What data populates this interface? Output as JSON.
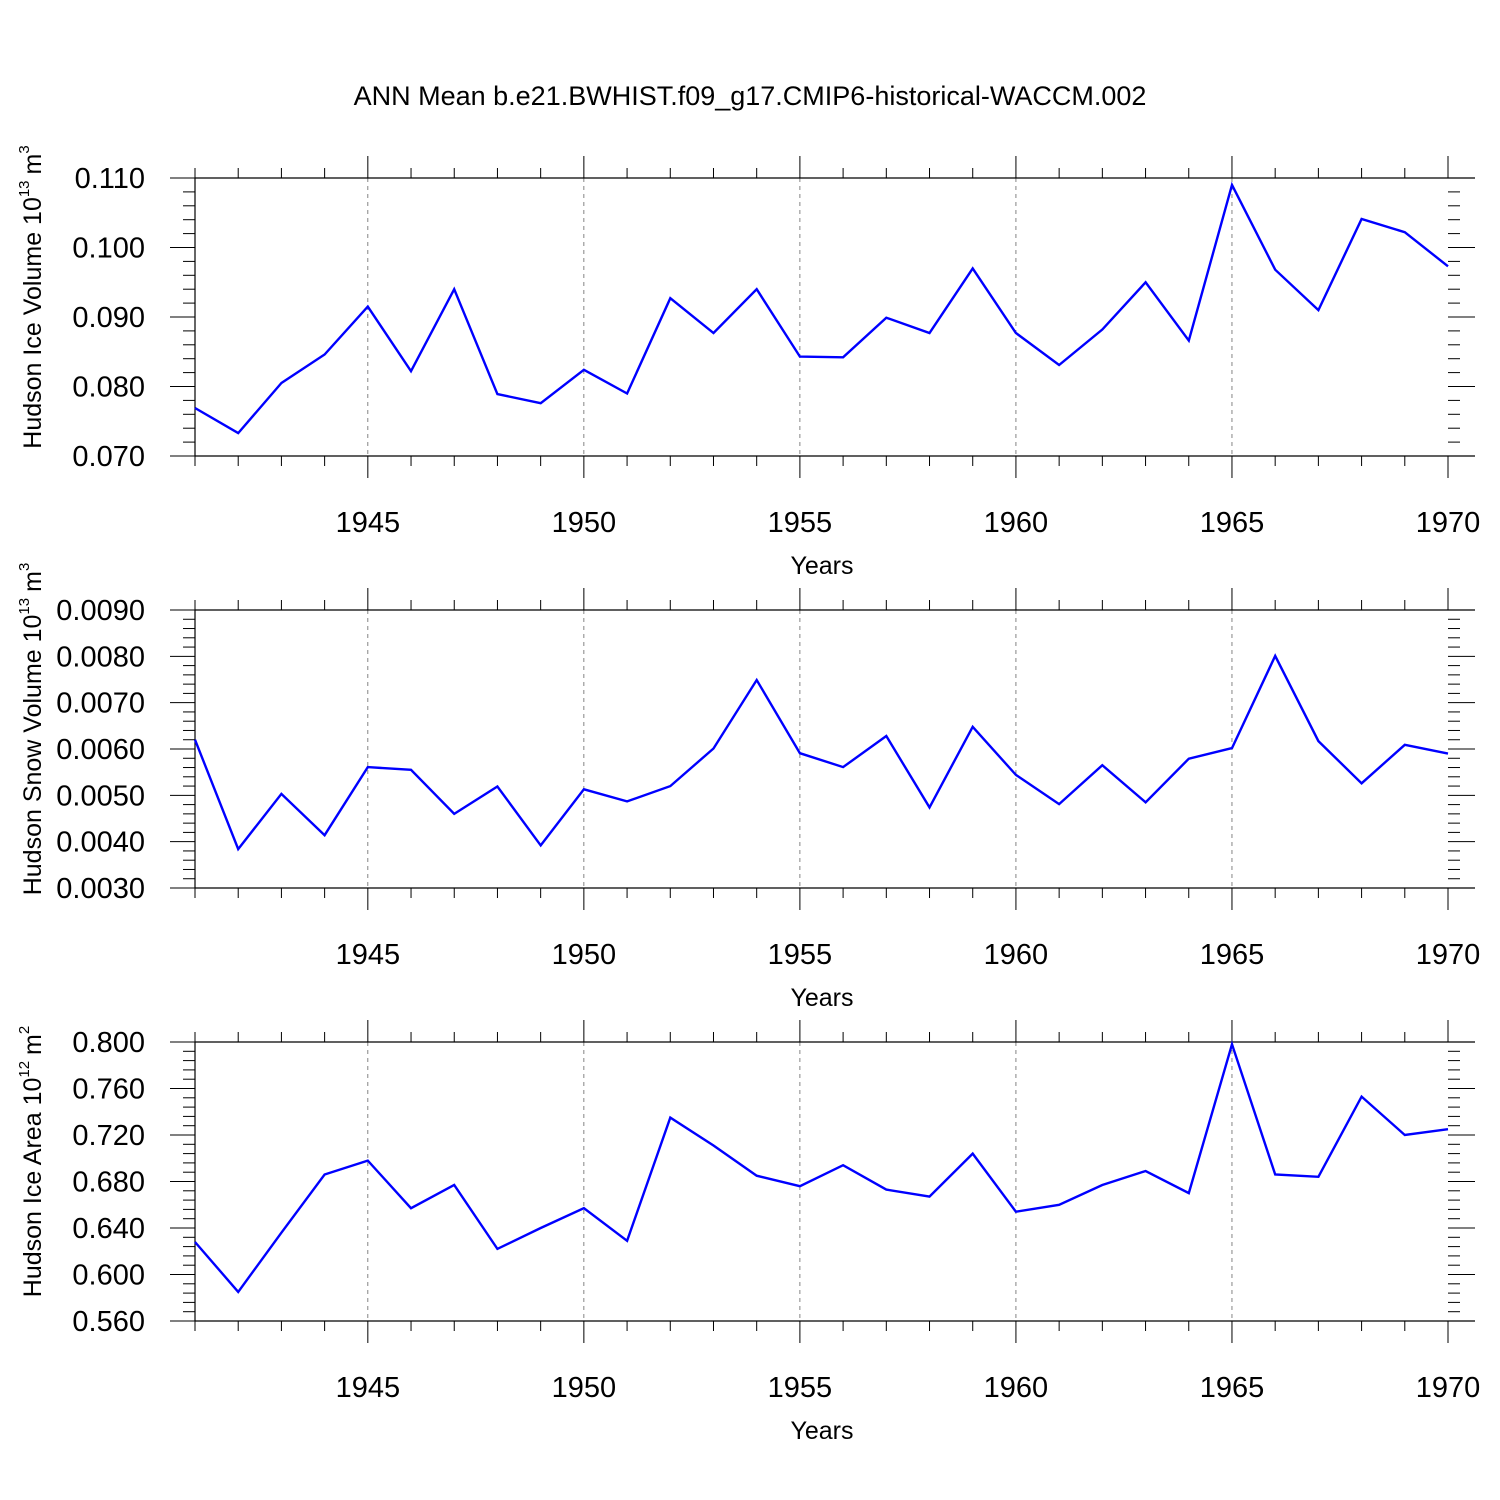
{
  "title": "ANN Mean b.e21.BWHIST.f09_g17.CMIP6-historical-WACCM.002",
  "colors": {
    "line": "#0000ff",
    "axis": "#000000",
    "grid": "#000000"
  },
  "chart_data": [
    {
      "type": "line",
      "ylabel_main": "Hudson Ice Volume 10",
      "ylabel_sup": "13",
      "ylabel_unit": "m",
      "ylabel_unit_sup": "3",
      "xlabel": "Years",
      "xlim": [
        1941,
        1970
      ],
      "ylim": [
        0.07,
        0.11
      ],
      "yticks": [
        "0.070",
        "0.080",
        "0.090",
        "0.100",
        "0.110"
      ],
      "xticks": [
        "1945",
        "1950",
        "1955",
        "1960",
        "1965",
        "1970"
      ],
      "gridlines_x": [
        1945,
        1950,
        1955,
        1960,
        1965
      ],
      "x": [
        1941,
        1942,
        1943,
        1944,
        1945,
        1946,
        1947,
        1948,
        1949,
        1950,
        1951,
        1952,
        1953,
        1954,
        1955,
        1956,
        1957,
        1958,
        1959,
        1960,
        1961,
        1962,
        1963,
        1964,
        1965,
        1966,
        1967,
        1968,
        1969,
        1970
      ],
      "values": [
        0.0769,
        0.0733,
        0.0805,
        0.0846,
        0.0915,
        0.0822,
        0.094,
        0.0789,
        0.0776,
        0.0824,
        0.079,
        0.0927,
        0.0877,
        0.094,
        0.0843,
        0.0842,
        0.0899,
        0.0877,
        0.097,
        0.0877,
        0.0831,
        0.0882,
        0.095,
        0.0866,
        0.109,
        0.0968,
        0.091,
        0.1041,
        0.1022,
        0.0973
      ]
    },
    {
      "type": "line",
      "ylabel_main": "Hudson Snow Volume 10",
      "ylabel_sup": "13",
      "ylabel_unit": "m",
      "ylabel_unit_sup": "3",
      "xlabel": "Years",
      "xlim": [
        1941,
        1970
      ],
      "ylim": [
        0.003,
        0.009
      ],
      "yticks": [
        "0.0030",
        "0.0040",
        "0.0050",
        "0.0060",
        "0.0070",
        "0.0080",
        "0.0090"
      ],
      "xticks": [
        "1945",
        "1950",
        "1955",
        "1960",
        "1965",
        "1970"
      ],
      "gridlines_x": [
        1945,
        1950,
        1955,
        1960,
        1965
      ],
      "x": [
        1941,
        1942,
        1943,
        1944,
        1945,
        1946,
        1947,
        1948,
        1949,
        1950,
        1951,
        1952,
        1953,
        1954,
        1955,
        1956,
        1957,
        1958,
        1959,
        1960,
        1961,
        1962,
        1963,
        1964,
        1965,
        1966,
        1967,
        1968,
        1969,
        1970
      ],
      "values": [
        0.0062,
        0.00384,
        0.00503,
        0.00414,
        0.00561,
        0.00555,
        0.0046,
        0.00519,
        0.00392,
        0.00513,
        0.00487,
        0.0052,
        0.00601,
        0.00749,
        0.00591,
        0.00561,
        0.00628,
        0.00474,
        0.00648,
        0.00544,
        0.00481,
        0.00565,
        0.00485,
        0.00579,
        0.00602,
        0.00801,
        0.00617,
        0.00526,
        0.00609,
        0.0059
      ]
    },
    {
      "type": "line",
      "ylabel_main": "Hudson Ice Area 10",
      "ylabel_sup": "12",
      "ylabel_unit": "m",
      "ylabel_unit_sup": "2",
      "xlabel": "Years",
      "xlim": [
        1941,
        1970
      ],
      "ylim": [
        0.56,
        0.8
      ],
      "yticks": [
        "0.560",
        "0.600",
        "0.640",
        "0.680",
        "0.720",
        "0.760",
        "0.800"
      ],
      "xticks": [
        "1945",
        "1950",
        "1955",
        "1960",
        "1965",
        "1970"
      ],
      "gridlines_x": [
        1945,
        1950,
        1955,
        1960,
        1965
      ],
      "x": [
        1941,
        1942,
        1943,
        1944,
        1945,
        1946,
        1947,
        1948,
        1949,
        1950,
        1951,
        1952,
        1953,
        1954,
        1955,
        1956,
        1957,
        1958,
        1959,
        1960,
        1961,
        1962,
        1963,
        1964,
        1965,
        1966,
        1967,
        1968,
        1969,
        1970
      ],
      "values": [
        0.628,
        0.585,
        0.636,
        0.686,
        0.698,
        0.657,
        0.677,
        0.622,
        0.64,
        0.657,
        0.629,
        0.735,
        0.711,
        0.685,
        0.676,
        0.694,
        0.673,
        0.667,
        0.704,
        0.654,
        0.66,
        0.677,
        0.689,
        0.67,
        0.798,
        0.686,
        0.684,
        0.753,
        0.72,
        0.725
      ]
    }
  ]
}
